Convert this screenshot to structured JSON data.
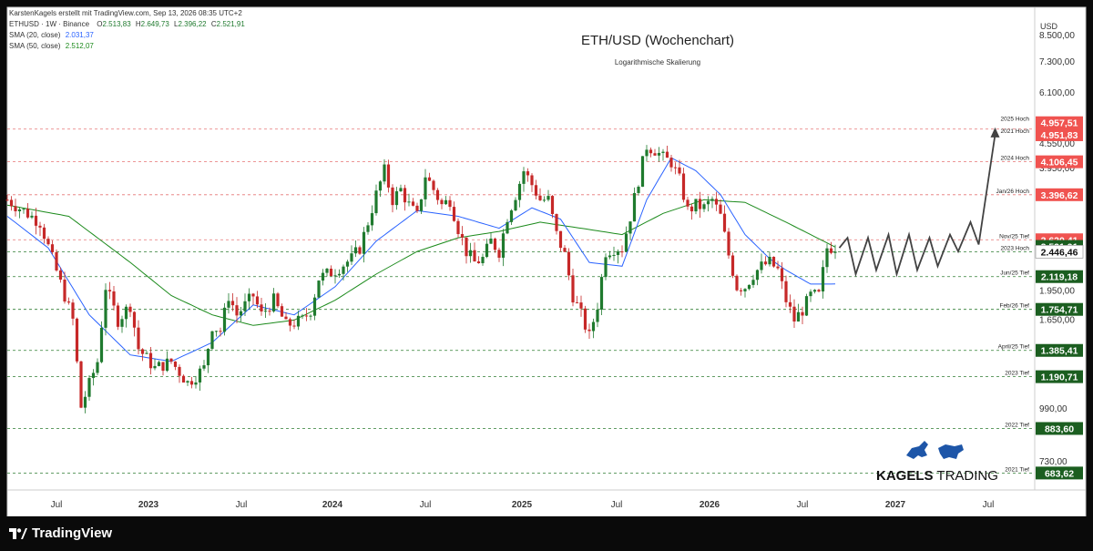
{
  "header": {
    "author_line": "KarstenKagels erstellt mit TradingView.com, Sep 13, 2026 08:35 UTC+2",
    "symbol_line": "ETHUSD · 1W · Binance",
    "ohlc": {
      "o_label": "O",
      "o": "2.513,83",
      "h_label": "H",
      "h": "2.649,73",
      "l_label": "L",
      "l": "2.396,22",
      "c_label": "C",
      "c": "2.521,91"
    },
    "sma20": {
      "label": "SMA (20, close)",
      "value": "2.031,37",
      "color": "#2962ff"
    },
    "sma50": {
      "label": "SMA (50, close)",
      "value": "2.512,07",
      "color": "#1b8a1b"
    }
  },
  "title": "ETH/USD (Wochenchart)",
  "subtitle": "Logarithmische Skalierung",
  "currency": "USD",
  "footer": {
    "brand": "TradingView"
  },
  "watermark": {
    "brand_bold": "KAGELS",
    "brand_rest": " TRADING"
  },
  "colors": {
    "up": "#1f7a2e",
    "down": "#c62828",
    "red_line": "#e57373",
    "green_line": "#2e7d32",
    "arrow": "#424242",
    "label_red": "#f05350",
    "label_green": "#1b5e20"
  },
  "chart_data": {
    "type": "candlestick",
    "scale": "log",
    "ylim": [
      620,
      10000
    ],
    "y_ticks": [
      "8.500,00",
      "7.300,00",
      "6.100,00",
      "4.550,00",
      "3.950,00",
      "1.950,00",
      "1.650,00",
      "990,00",
      "730,00"
    ],
    "x_ticks": [
      "Jul",
      "2023",
      "Jul",
      "2024",
      "Jul",
      "2025",
      "Jul",
      "2026",
      "Jul",
      "2027",
      "Jul"
    ],
    "levels": [
      {
        "name": "2025 Hoch",
        "value": 4957.51,
        "label": "4.957,51",
        "style": "red",
        "tag": "red"
      },
      {
        "name": "2021 Hoch",
        "value": 4951.83,
        "label": "4.951,83",
        "style": "none",
        "tag": "red"
      },
      {
        "name": "2024 Hoch",
        "value": 4106.45,
        "label": "4.106,45",
        "style": "red",
        "tag": "red"
      },
      {
        "name": "Jan/26 Hoch",
        "value": 3396.62,
        "label": "3.396,62",
        "style": "red",
        "tag": "red"
      },
      {
        "name": "Nov/25 Tief",
        "value": 2620.41,
        "label": "2.620,41",
        "style": "red",
        "tag": "red"
      },
      {
        "name": "",
        "value": 2521.91,
        "label": "2.521,91",
        "style": "none",
        "tag": "green"
      },
      {
        "name": "2023 Hoch",
        "value": 2446.46,
        "label": "2.446,46",
        "style": "green",
        "tag": "white"
      },
      {
        "name": "Jun/25 Tief",
        "value": 2119.18,
        "label": "2.119,18",
        "style": "green",
        "tag": "green"
      },
      {
        "name": "Feb/26 Tief",
        "value": 1754.71,
        "label": "1.754,71",
        "style": "green",
        "tag": "green"
      },
      {
        "name": "April/25 Tief",
        "value": 1385.41,
        "label": "1.385,41",
        "style": "green",
        "tag": "green"
      },
      {
        "name": "2023 Tief",
        "value": 1190.71,
        "label": "1.190,71",
        "style": "green",
        "tag": "green"
      },
      {
        "name": "2022 Tief",
        "value": 883.6,
        "label": "883,60",
        "style": "green",
        "tag": "green"
      },
      {
        "name": "2021 Tief",
        "value": 683.62,
        "label": "683,62",
        "style": "green",
        "tag": "green"
      }
    ],
    "price_path_anchors": [
      [
        0,
        3300
      ],
      [
        8,
        2900
      ],
      [
        14,
        1900
      ],
      [
        16,
        1650
      ],
      [
        18,
        1000
      ],
      [
        22,
        1300
      ],
      [
        24,
        2000
      ],
      [
        27,
        1650
      ],
      [
        30,
        1800
      ],
      [
        32,
        1400
      ],
      [
        36,
        1250
      ],
      [
        40,
        1300
      ],
      [
        44,
        1150
      ],
      [
        48,
        1250
      ],
      [
        50,
        1600
      ],
      [
        52,
        1550
      ],
      [
        54,
        1900
      ],
      [
        56,
        1700
      ],
      [
        60,
        1900
      ],
      [
        62,
        1700
      ],
      [
        65,
        1850
      ],
      [
        68,
        1600
      ],
      [
        72,
        1650
      ],
      [
        74,
        1750
      ],
      [
        76,
        2100
      ],
      [
        80,
        2200
      ],
      [
        84,
        2350
      ],
      [
        86,
        2500
      ],
      [
        88,
        2900
      ],
      [
        90,
        3400
      ],
      [
        92,
        3900
      ],
      [
        94,
        3300
      ],
      [
        96,
        3500
      ],
      [
        98,
        3200
      ],
      [
        100,
        3000
      ],
      [
        102,
        3800
      ],
      [
        104,
        3500
      ],
      [
        106,
        3200
      ],
      [
        108,
        3300
      ],
      [
        110,
        2800
      ],
      [
        112,
        2450
      ],
      [
        114,
        2300
      ],
      [
        116,
        2350
      ],
      [
        118,
        2600
      ],
      [
        120,
        2450
      ],
      [
        122,
        3000
      ],
      [
        124,
        3400
      ],
      [
        126,
        3900
      ],
      [
        128,
        3600
      ],
      [
        130,
        3300
      ],
      [
        132,
        3300
      ],
      [
        134,
        2700
      ],
      [
        136,
        2400
      ],
      [
        138,
        1900
      ],
      [
        140,
        1700
      ],
      [
        142,
        1500
      ],
      [
        144,
        1800
      ],
      [
        146,
        2450
      ],
      [
        148,
        2500
      ],
      [
        150,
        2500
      ],
      [
        152,
        3000
      ],
      [
        154,
        3700
      ],
      [
        156,
        4500
      ],
      [
        158,
        4400
      ],
      [
        160,
        4200
      ],
      [
        162,
        4100
      ],
      [
        164,
        3700
      ],
      [
        166,
        3100
      ],
      [
        168,
        3200
      ],
      [
        170,
        3150
      ],
      [
        172,
        3300
      ],
      [
        174,
        3000
      ],
      [
        176,
        2400
      ],
      [
        178,
        2000
      ],
      [
        180,
        2000
      ],
      [
        182,
        2150
      ],
      [
        184,
        2250
      ],
      [
        186,
        2300
      ],
      [
        188,
        2200
      ],
      [
        190,
        1850
      ],
      [
        192,
        1650
      ],
      [
        194,
        1750
      ],
      [
        196,
        1900
      ],
      [
        198,
        1900
      ],
      [
        200,
        2500
      ],
      [
        202,
        2520
      ]
    ],
    "sma20_anchors": [
      [
        0,
        3000
      ],
      [
        10,
        2500
      ],
      [
        20,
        1700
      ],
      [
        30,
        1350
      ],
      [
        40,
        1300
      ],
      [
        50,
        1450
      ],
      [
        60,
        1800
      ],
      [
        70,
        1700
      ],
      [
        80,
        2000
      ],
      [
        90,
        2600
      ],
      [
        100,
        3100
      ],
      [
        110,
        3000
      ],
      [
        120,
        2800
      ],
      [
        128,
        3150
      ],
      [
        135,
        2950
      ],
      [
        142,
        2300
      ],
      [
        150,
        2250
      ],
      [
        156,
        3300
      ],
      [
        162,
        4200
      ],
      [
        168,
        3900
      ],
      [
        174,
        3400
      ],
      [
        180,
        2700
      ],
      [
        186,
        2350
      ],
      [
        190,
        2200
      ],
      [
        196,
        2030
      ],
      [
        202,
        2031
      ]
    ],
    "sma50_anchors": [
      [
        0,
        3200
      ],
      [
        15,
        3000
      ],
      [
        30,
        2300
      ],
      [
        40,
        1900
      ],
      [
        50,
        1700
      ],
      [
        60,
        1600
      ],
      [
        70,
        1650
      ],
      [
        80,
        1850
      ],
      [
        90,
        2150
      ],
      [
        100,
        2450
      ],
      [
        110,
        2650
      ],
      [
        120,
        2750
      ],
      [
        130,
        2900
      ],
      [
        140,
        2800
      ],
      [
        150,
        2700
      ],
      [
        160,
        3050
      ],
      [
        170,
        3300
      ],
      [
        180,
        3250
      ],
      [
        190,
        2900
      ],
      [
        196,
        2700
      ],
      [
        202,
        2512
      ]
    ],
    "projection_anchors": [
      [
        203,
        2500
      ],
      [
        205,
        2650
      ],
      [
        207,
        2150
      ],
      [
        210,
        2650
      ],
      [
        212,
        2200
      ],
      [
        215,
        2700
      ],
      [
        217,
        2150
      ],
      [
        220,
        2700
      ],
      [
        222,
        2200
      ],
      [
        225,
        2650
      ],
      [
        227,
        2250
      ],
      [
        230,
        2700
      ],
      [
        232,
        2450
      ],
      [
        235,
        2900
      ],
      [
        237,
        2550
      ],
      [
        241,
        4800
      ]
    ]
  }
}
